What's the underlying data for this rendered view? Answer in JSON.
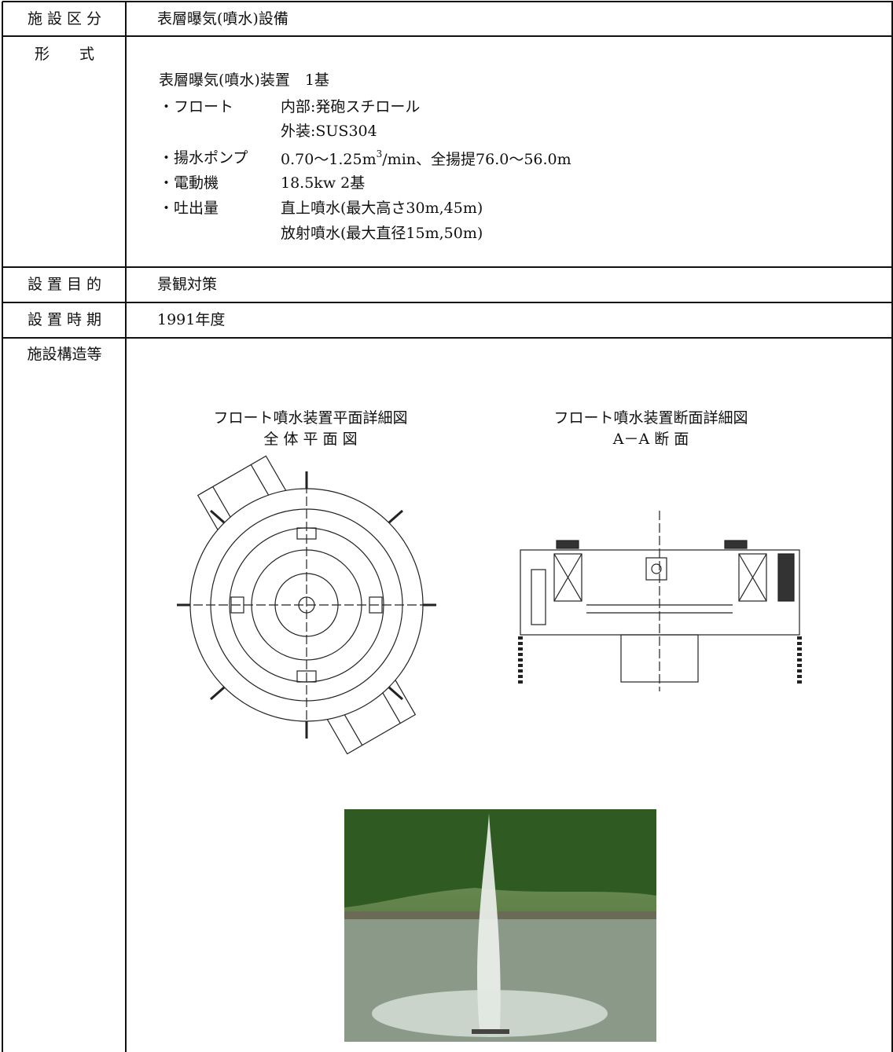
{
  "table": {
    "rows": [
      {
        "label": "施 設 区 分",
        "value": "表層曝気(噴水)設備"
      },
      {
        "label": "形　　式",
        "summary": "表層曝気(噴水)装置　1基",
        "items": [
          {
            "name": "・フロート",
            "lines": [
              "内部:発砲スチロール",
              "外装:SUS304"
            ]
          },
          {
            "name": "・揚水ポンプ",
            "lines": [
              {
                "text": "0.70～1.25m",
                "sup": "3",
                "rest": "/min、全揚提76.0～56.0m"
              }
            ]
          },
          {
            "name": "・電動機",
            "lines": [
              "18.5kw  2基"
            ]
          },
          {
            "name": "・吐出量",
            "lines": [
              "直上噴水(最大高さ30m,45m)",
              "放射噴水(最大直径15m,50m)"
            ]
          }
        ]
      },
      {
        "label": "設 置 目 的",
        "value": "景観対策"
      },
      {
        "label": "設 置 時 期",
        "value": "1991年度"
      },
      {
        "label": "施設構造等",
        "captions": [
          {
            "title": "フロート噴水装置平面詳細図",
            "subtitle": "全 体 平 面 図"
          },
          {
            "title": "フロート噴水装置断面詳細図",
            "subtitle": "A－A 断 面"
          }
        ]
      }
    ]
  }
}
